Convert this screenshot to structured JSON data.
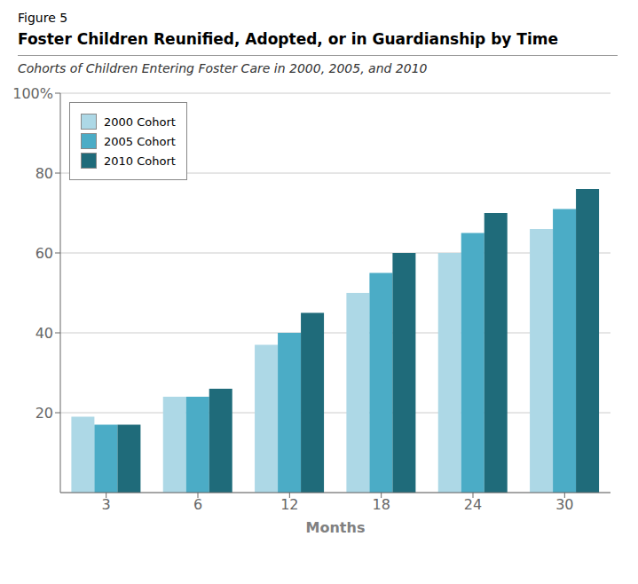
{
  "chart_data": {
    "type": "bar",
    "title": "Foster Children Reunified, Adopted, or in Guardianship by Time",
    "subtitle": "Cohorts of Children Entering Foster Care in 2000, 2005, and 2010",
    "annotations": [
      "Figure 5"
    ],
    "xlabel": "Months",
    "categories": [
      "3",
      "6",
      "12",
      "18",
      "24",
      "30"
    ],
    "series": [
      {
        "name": "2000 Cohort",
        "color": "#ADD8E6",
        "values": [
          19,
          24,
          37,
          50,
          60,
          66
        ]
      },
      {
        "name": "2005 Cohort",
        "color": "#4BACC6",
        "values": [
          17,
          24,
          40,
          55,
          65,
          71
        ]
      },
      {
        "name": "2010 Cohort",
        "color": "#1F6B7A",
        "values": [
          17,
          26,
          45,
          60,
          70,
          76
        ]
      }
    ],
    "ylim": [
      0,
      100
    ],
    "yticks": [
      20,
      40,
      60,
      80,
      {
        "value": 100,
        "label": "100%"
      }
    ],
    "grid": true,
    "legend": "upper left"
  }
}
